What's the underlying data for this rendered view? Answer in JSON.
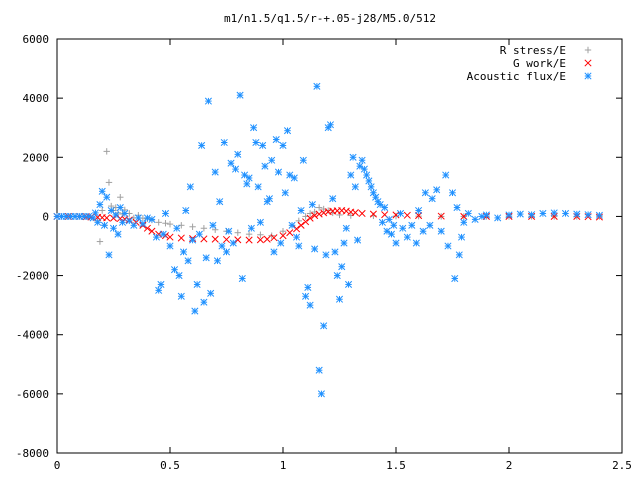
{
  "chart_data": {
    "type": "scatter",
    "title": "m1/n1.5/q1.5/r-+.05-j28/M5.0/512",
    "xlabel": "",
    "ylabel": "",
    "xlim": [
      0,
      2.5
    ],
    "ylim": [
      -8000,
      6000
    ],
    "x_ticks": [
      0,
      0.5,
      1,
      1.5,
      2,
      2.5
    ],
    "y_ticks": [
      -8000,
      -6000,
      -4000,
      -2000,
      0,
      2000,
      4000,
      6000
    ],
    "x_tick_labels": [
      "0",
      "0.5",
      "1",
      "1.5",
      "2",
      "2.5"
    ],
    "y_tick_labels": [
      "-8000",
      "-6000",
      "-4000",
      "-2000",
      "0",
      "2000",
      "4000",
      "6000"
    ],
    "grid": false,
    "legend_position": "top-right",
    "series": [
      {
        "name": "R stress/E",
        "marker": "plus",
        "color": "#a0a0a0",
        "points": [
          [
            0.0,
            0
          ],
          [
            0.02,
            0
          ],
          [
            0.04,
            0
          ],
          [
            0.06,
            0
          ],
          [
            0.08,
            0
          ],
          [
            0.1,
            0
          ],
          [
            0.12,
            0
          ],
          [
            0.14,
            -20
          ],
          [
            0.18,
            -150
          ],
          [
            0.19,
            -850
          ],
          [
            0.2,
            200
          ],
          [
            0.21,
            -300
          ],
          [
            0.22,
            2200
          ],
          [
            0.23,
            1150
          ],
          [
            0.24,
            350
          ],
          [
            0.25,
            200
          ],
          [
            0.26,
            300
          ],
          [
            0.27,
            120
          ],
          [
            0.28,
            650
          ],
          [
            0.29,
            80
          ],
          [
            0.3,
            220
          ],
          [
            0.32,
            100
          ],
          [
            0.34,
            -50
          ],
          [
            0.36,
            40
          ],
          [
            0.38,
            -60
          ],
          [
            0.4,
            -80
          ],
          [
            0.42,
            -120
          ],
          [
            0.45,
            -200
          ],
          [
            0.48,
            -230
          ],
          [
            0.5,
            -260
          ],
          [
            0.55,
            -300
          ],
          [
            0.6,
            -350
          ],
          [
            0.65,
            -400
          ],
          [
            0.7,
            -450
          ],
          [
            0.75,
            -500
          ],
          [
            0.8,
            -550
          ],
          [
            0.85,
            -600
          ],
          [
            0.9,
            -620
          ],
          [
            0.95,
            -650
          ],
          [
            1.0,
            -500
          ],
          [
            1.04,
            -300
          ],
          [
            1.07,
            -150
          ],
          [
            1.1,
            0
          ],
          [
            1.12,
            100
          ],
          [
            1.14,
            150
          ],
          [
            1.16,
            300
          ],
          [
            1.18,
            250
          ],
          [
            1.2,
            200
          ],
          [
            1.22,
            120
          ],
          [
            1.25,
            50
          ],
          [
            1.3,
            30
          ],
          [
            1.4,
            20
          ],
          [
            1.5,
            10
          ],
          [
            1.6,
            10
          ],
          [
            1.7,
            0
          ],
          [
            1.8,
            0
          ],
          [
            1.9,
            0
          ],
          [
            2.0,
            0
          ],
          [
            2.1,
            0
          ],
          [
            2.2,
            0
          ],
          [
            2.3,
            0
          ],
          [
            2.4,
            0
          ]
        ]
      },
      {
        "name": "G work/E",
        "marker": "cross",
        "color": "#ff0000",
        "points": [
          [
            0.0,
            0
          ],
          [
            0.05,
            0
          ],
          [
            0.1,
            0
          ],
          [
            0.13,
            -10
          ],
          [
            0.15,
            -20
          ],
          [
            0.18,
            -30
          ],
          [
            0.2,
            -40
          ],
          [
            0.22,
            -50
          ],
          [
            0.25,
            -60
          ],
          [
            0.28,
            -70
          ],
          [
            0.3,
            -90
          ],
          [
            0.32,
            -120
          ],
          [
            0.35,
            -200
          ],
          [
            0.38,
            -300
          ],
          [
            0.4,
            -400
          ],
          [
            0.42,
            -500
          ],
          [
            0.45,
            -600
          ],
          [
            0.48,
            -650
          ],
          [
            0.5,
            -700
          ],
          [
            0.55,
            -730
          ],
          [
            0.6,
            -750
          ],
          [
            0.65,
            -760
          ],
          [
            0.7,
            -770
          ],
          [
            0.75,
            -780
          ],
          [
            0.8,
            -790
          ],
          [
            0.85,
            -800
          ],
          [
            0.9,
            -790
          ],
          [
            0.93,
            -770
          ],
          [
            0.96,
            -720
          ],
          [
            1.0,
            -650
          ],
          [
            1.03,
            -550
          ],
          [
            1.06,
            -420
          ],
          [
            1.08,
            -300
          ],
          [
            1.1,
            -180
          ],
          [
            1.12,
            -60
          ],
          [
            1.14,
            30
          ],
          [
            1.16,
            80
          ],
          [
            1.18,
            120
          ],
          [
            1.2,
            160
          ],
          [
            1.22,
            180
          ],
          [
            1.24,
            190
          ],
          [
            1.26,
            200
          ],
          [
            1.28,
            180
          ],
          [
            1.3,
            150
          ],
          [
            1.32,
            130
          ],
          [
            1.35,
            100
          ],
          [
            1.4,
            80
          ],
          [
            1.45,
            60
          ],
          [
            1.5,
            50
          ],
          [
            1.55,
            40
          ],
          [
            1.6,
            30
          ],
          [
            1.7,
            10
          ],
          [
            1.8,
            0
          ],
          [
            1.9,
            0
          ],
          [
            2.0,
            0
          ],
          [
            2.1,
            0
          ],
          [
            2.2,
            0
          ],
          [
            2.3,
            0
          ],
          [
            2.35,
            -10
          ],
          [
            2.4,
            -20
          ]
        ]
      },
      {
        "name": "Acoustic flux/E",
        "marker": "star",
        "color": "#1e90ff",
        "points": [
          [
            0.0,
            0
          ],
          [
            0.02,
            0
          ],
          [
            0.04,
            0
          ],
          [
            0.06,
            0
          ],
          [
            0.08,
            0
          ],
          [
            0.1,
            0
          ],
          [
            0.12,
            0
          ],
          [
            0.14,
            0
          ],
          [
            0.16,
            -50
          ],
          [
            0.17,
            120
          ],
          [
            0.18,
            -200
          ],
          [
            0.19,
            400
          ],
          [
            0.2,
            850
          ],
          [
            0.21,
            -300
          ],
          [
            0.22,
            650
          ],
          [
            0.23,
            -1300
          ],
          [
            0.24,
            200
          ],
          [
            0.25,
            -400
          ],
          [
            0.26,
            50
          ],
          [
            0.27,
            -600
          ],
          [
            0.28,
            300
          ],
          [
            0.29,
            -200
          ],
          [
            0.3,
            100
          ],
          [
            0.32,
            -150
          ],
          [
            0.34,
            -300
          ],
          [
            0.36,
            -50
          ],
          [
            0.38,
            -250
          ],
          [
            0.4,
            -50
          ],
          [
            0.42,
            -100
          ],
          [
            0.44,
            -700
          ],
          [
            0.45,
            -2500
          ],
          [
            0.46,
            -2300
          ],
          [
            0.47,
            -600
          ],
          [
            0.48,
            100
          ],
          [
            0.5,
            -1000
          ],
          [
            0.52,
            -1800
          ],
          [
            0.53,
            -400
          ],
          [
            0.54,
            -2000
          ],
          [
            0.55,
            -2700
          ],
          [
            0.56,
            -1200
          ],
          [
            0.57,
            200
          ],
          [
            0.58,
            -1500
          ],
          [
            0.59,
            1000
          ],
          [
            0.6,
            -800
          ],
          [
            0.61,
            -3200
          ],
          [
            0.62,
            -2300
          ],
          [
            0.63,
            -600
          ],
          [
            0.64,
            2400
          ],
          [
            0.65,
            -2900
          ],
          [
            0.66,
            -1400
          ],
          [
            0.67,
            3900
          ],
          [
            0.68,
            -2600
          ],
          [
            0.69,
            -300
          ],
          [
            0.7,
            1500
          ],
          [
            0.71,
            -1500
          ],
          [
            0.72,
            500
          ],
          [
            0.73,
            -1000
          ],
          [
            0.74,
            2500
          ],
          [
            0.75,
            -1200
          ],
          [
            0.76,
            -500
          ],
          [
            0.77,
            1800
          ],
          [
            0.78,
            -900
          ],
          [
            0.79,
            1600
          ],
          [
            0.8,
            2100
          ],
          [
            0.81,
            4100
          ],
          [
            0.82,
            -2100
          ],
          [
            0.83,
            1400
          ],
          [
            0.84,
            1100
          ],
          [
            0.85,
            1300
          ],
          [
            0.86,
            -400
          ],
          [
            0.87,
            3000
          ],
          [
            0.88,
            2500
          ],
          [
            0.89,
            1000
          ],
          [
            0.9,
            -200
          ],
          [
            0.91,
            2400
          ],
          [
            0.92,
            1700
          ],
          [
            0.93,
            500
          ],
          [
            0.94,
            600
          ],
          [
            0.95,
            1900
          ],
          [
            0.96,
            -1200
          ],
          [
            0.97,
            2600
          ],
          [
            0.98,
            1500
          ],
          [
            0.99,
            -900
          ],
          [
            1.0,
            2400
          ],
          [
            1.01,
            800
          ],
          [
            1.02,
            2900
          ],
          [
            1.03,
            1400
          ],
          [
            1.04,
            -300
          ],
          [
            1.05,
            1300
          ],
          [
            1.06,
            -700
          ],
          [
            1.07,
            -1000
          ],
          [
            1.08,
            200
          ],
          [
            1.09,
            1900
          ],
          [
            1.1,
            -2700
          ],
          [
            1.11,
            -2400
          ],
          [
            1.12,
            -3000
          ],
          [
            1.13,
            400
          ],
          [
            1.14,
            -1100
          ],
          [
            1.15,
            4400
          ],
          [
            1.16,
            -5200
          ],
          [
            1.17,
            -6000
          ],
          [
            1.18,
            -3700
          ],
          [
            1.19,
            -1300
          ],
          [
            1.2,
            3000
          ],
          [
            1.21,
            3100
          ],
          [
            1.22,
            600
          ],
          [
            1.23,
            -1200
          ],
          [
            1.24,
            -2000
          ],
          [
            1.25,
            -2800
          ],
          [
            1.26,
            -1700
          ],
          [
            1.27,
            -900
          ],
          [
            1.28,
            -400
          ],
          [
            1.29,
            -2300
          ],
          [
            1.3,
            1400
          ],
          [
            1.31,
            2000
          ],
          [
            1.32,
            1000
          ],
          [
            1.33,
            -800
          ],
          [
            1.34,
            1700
          ],
          [
            1.35,
            1900
          ],
          [
            1.36,
            1600
          ],
          [
            1.37,
            1400
          ],
          [
            1.38,
            1200
          ],
          [
            1.39,
            1000
          ],
          [
            1.4,
            800
          ],
          [
            1.41,
            650
          ],
          [
            1.42,
            500
          ],
          [
            1.43,
            400
          ],
          [
            1.44,
            -200
          ],
          [
            1.45,
            300
          ],
          [
            1.46,
            -500
          ],
          [
            1.47,
            -100
          ],
          [
            1.48,
            -600
          ],
          [
            1.49,
            -300
          ],
          [
            1.5,
            -900
          ],
          [
            1.52,
            100
          ],
          [
            1.53,
            -400
          ],
          [
            1.55,
            -700
          ],
          [
            1.57,
            -300
          ],
          [
            1.59,
            -900
          ],
          [
            1.6,
            200
          ],
          [
            1.62,
            -500
          ],
          [
            1.63,
            800
          ],
          [
            1.65,
            -300
          ],
          [
            1.66,
            600
          ],
          [
            1.68,
            900
          ],
          [
            1.7,
            -500
          ],
          [
            1.72,
            1400
          ],
          [
            1.73,
            -1000
          ],
          [
            1.75,
            800
          ],
          [
            1.76,
            -2100
          ],
          [
            1.77,
            300
          ],
          [
            1.78,
            -1300
          ],
          [
            1.79,
            -700
          ],
          [
            1.8,
            -200
          ],
          [
            1.82,
            100
          ],
          [
            1.85,
            -100
          ],
          [
            1.88,
            0
          ],
          [
            1.9,
            50
          ],
          [
            1.95,
            -50
          ],
          [
            2.0,
            50
          ],
          [
            2.05,
            80
          ],
          [
            2.1,
            60
          ],
          [
            2.15,
            100
          ],
          [
            2.2,
            120
          ],
          [
            2.25,
            100
          ],
          [
            2.3,
            80
          ],
          [
            2.35,
            60
          ],
          [
            2.4,
            40
          ]
        ]
      }
    ]
  }
}
